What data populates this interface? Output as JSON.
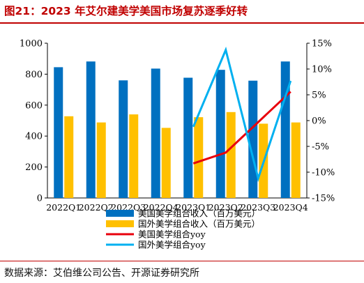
{
  "title": "图21：2023 年艾尔建美学美国市场复苏逐季好转",
  "source": "数据来源：艾伯维公司公告、开源证券研究所",
  "colors": {
    "us_bar": "#0070c0",
    "intl_bar": "#ffc000",
    "us_yoy": "#e8000b",
    "intl_yoy": "#00b0f0",
    "title_red": "#c00000"
  },
  "chart_data": {
    "type": "bar",
    "categories": [
      "2022Q1",
      "2022Q2",
      "2022Q3",
      "2022Q4",
      "2023Q1",
      "2023Q2",
      "2023Q3",
      "2023Q4"
    ],
    "left_axis": {
      "ylim": [
        0,
        1000
      ],
      "ticks": [
        0,
        200,
        400,
        600,
        800,
        1000
      ],
      "tick_labels": [
        "0",
        "200",
        "400",
        "600",
        "800",
        "1000"
      ]
    },
    "right_axis": {
      "ylim": [
        -15,
        15
      ],
      "ticks": [
        -15,
        -10,
        -5,
        0,
        5,
        10,
        15
      ],
      "tick_labels": [
        "-15%",
        "-10%",
        "-5%",
        "0%",
        "5%",
        "10%",
        "15%"
      ]
    },
    "grid": false,
    "legend_position": "bottom",
    "series": [
      {
        "name": "美国美学组合收入（百万美元）",
        "kind": "bar",
        "axis": "left",
        "color_key": "us_bar",
        "values": [
          845,
          882,
          760,
          836,
          777,
          828,
          758,
          882
        ]
      },
      {
        "name": "国外美学组合收入（百万美元）",
        "kind": "bar",
        "axis": "left",
        "color_key": "intl_bar",
        "values": [
          528,
          488,
          540,
          453,
          522,
          555,
          480,
          488
        ]
      },
      {
        "name": "美国美学组合yoy",
        "kind": "line",
        "axis": "right",
        "color_key": "us_yoy",
        "values": [
          null,
          null,
          null,
          null,
          -8.3,
          -6.2,
          -0.3,
          5.6
        ]
      },
      {
        "name": "国外美学组合yoy",
        "kind": "line",
        "axis": "right",
        "color_key": "intl_yoy",
        "values": [
          null,
          null,
          null,
          null,
          -1.2,
          13.7,
          -11.2,
          7.7
        ]
      }
    ]
  }
}
